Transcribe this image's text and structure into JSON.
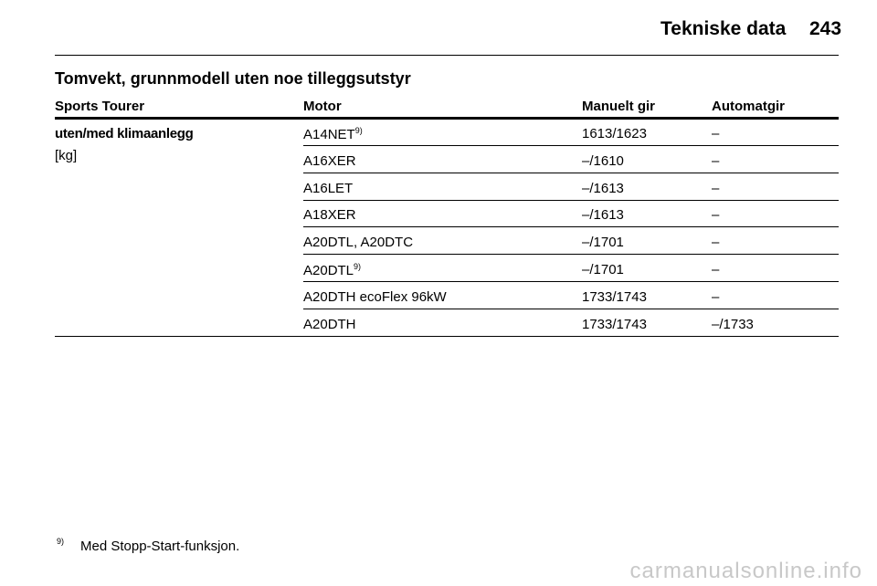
{
  "header": {
    "title": "Tekniske data",
    "page": "243"
  },
  "section": {
    "title": "Tomvekt, grunnmodell uten noe tilleggsutstyr"
  },
  "table": {
    "columns": [
      "Sports Tourer",
      "Motor",
      "Manuelt gir",
      "Automatgir"
    ],
    "row_label": {
      "title": "uten/med klimaanlegg",
      "unit": "[kg]"
    },
    "rows": [
      {
        "motor": "A14NET",
        "note": "9)",
        "manual": "1613/1623",
        "auto": "–"
      },
      {
        "motor": "A16XER",
        "manual": "–/1610",
        "auto": "–"
      },
      {
        "motor": "A16LET",
        "manual": "–/1613",
        "auto": "–"
      },
      {
        "motor": "A18XER",
        "manual": "–/1613",
        "auto": "–"
      },
      {
        "motor": "A20DTL, A20DTC",
        "manual": "–/1701",
        "auto": "–"
      },
      {
        "motor": "A20DTL",
        "note": "9)",
        "manual": "–/1701",
        "auto": "–"
      },
      {
        "motor": "A20DTH ecoFlex 96kW",
        "manual": "1733/1743",
        "auto": "–"
      },
      {
        "motor": "A20DTH",
        "manual": "1733/1743",
        "auto": "–/1733"
      }
    ]
  },
  "footnote": {
    "mark": "9)",
    "text": "Med Stopp-Start-funksjon."
  },
  "watermark": "carmanualsonline.info"
}
